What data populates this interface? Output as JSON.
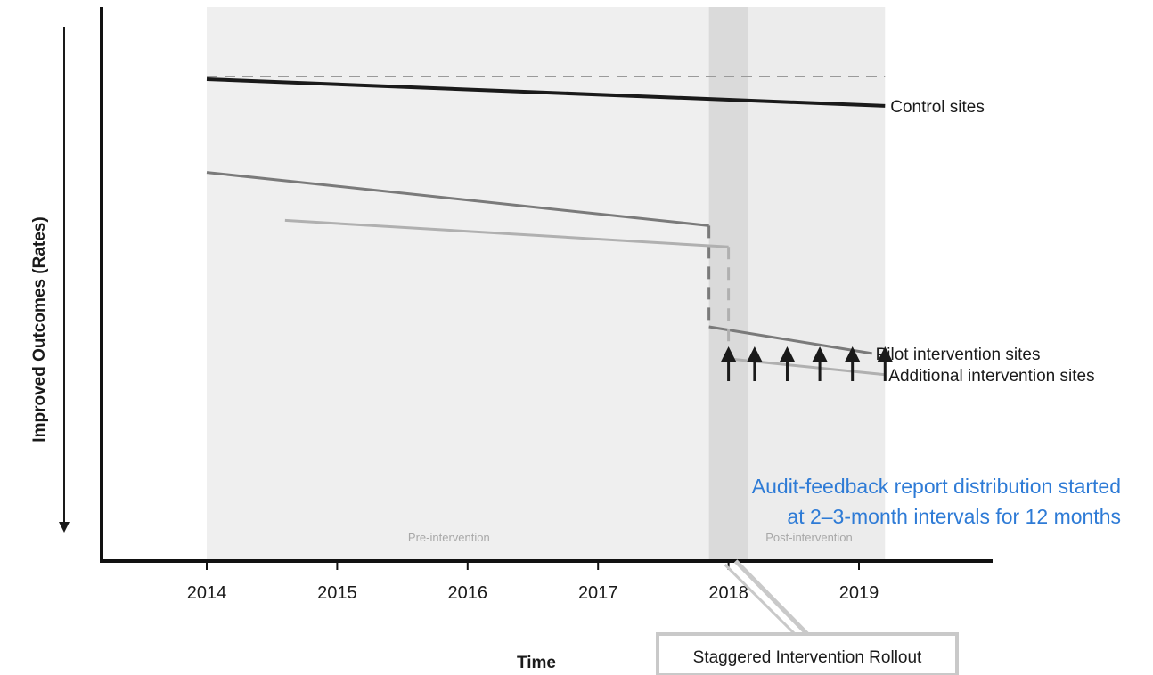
{
  "chart_data": {
    "type": "line",
    "xlabel": "Time",
    "ylabel": "Improved Outcomes (Rates)",
    "xlim": [
      2013.15,
      2019.95
    ],
    "ylim": [
      0,
      100
    ],
    "x_ticks": [
      "2014",
      "2015",
      "2016",
      "2017",
      "2018",
      "2019"
    ],
    "grid": false,
    "periods": [
      {
        "label": "Pre-intervention",
        "x": [
          2014.0,
          2017.85
        ]
      },
      {
        "label": "Post-intervention",
        "x": [
          2017.85,
          2019.2
        ]
      },
      {
        "label": "",
        "x": [
          2017.85,
          2018.15
        ],
        "note": "rollout band"
      }
    ],
    "reference_line": {
      "style": "dashed",
      "x": [
        2014.0,
        2019.2
      ],
      "y": 91
    },
    "series": [
      {
        "name": "Control sites",
        "color": "#1a1a1a",
        "style": "solid",
        "x": [
          2014.0,
          2019.2
        ],
        "y": [
          90.5,
          85.5
        ]
      },
      {
        "name": "Pilot intervention sites",
        "color": "#7a7a7a",
        "style": "solid",
        "pre": {
          "x": [
            2014.0,
            2017.85
          ],
          "y": [
            73,
            63
          ]
        },
        "drop": {
          "x": 2017.85,
          "y": [
            63,
            44
          ]
        },
        "post": {
          "x": [
            2017.85,
            2019.1
          ],
          "y": [
            44,
            39
          ]
        }
      },
      {
        "name": "Additional intervention sites",
        "color": "#b0b0b0",
        "style": "solid",
        "pre": {
          "x": [
            2014.6,
            2018.0
          ],
          "y": [
            64,
            59
          ]
        },
        "drop": {
          "x": 2018.0,
          "y": [
            59,
            38
          ]
        },
        "post": {
          "x": [
            2018.0,
            2019.2
          ],
          "y": [
            38,
            35
          ]
        }
      }
    ],
    "report_arrows_x": [
      2018.0,
      2018.2,
      2018.45,
      2018.7,
      2018.95,
      2019.2
    ],
    "annotations": [
      {
        "lines": [
          "Audit-feedback report distribution started",
          "at 2–3-month intervals for 12 months"
        ],
        "color": "#2e7bd6"
      }
    ],
    "callout": "Staggered Intervention Rollout"
  }
}
